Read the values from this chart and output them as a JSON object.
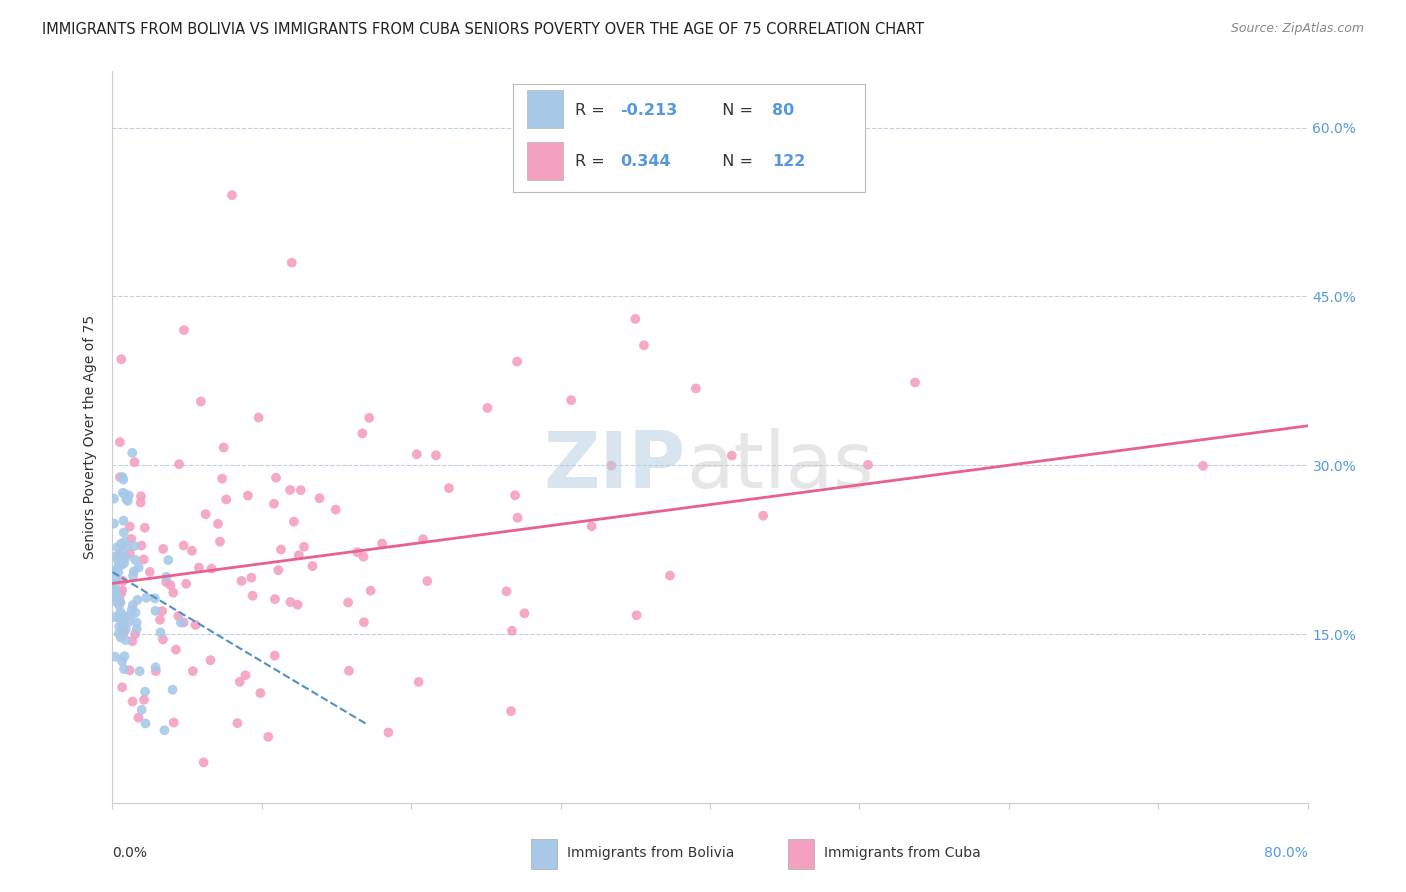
{
  "title": "IMMIGRANTS FROM BOLIVIA VS IMMIGRANTS FROM CUBA SENIORS POVERTY OVER THE AGE OF 75 CORRELATION CHART",
  "source": "Source: ZipAtlas.com",
  "ylabel": "Seniors Poverty Over the Age of 75",
  "ytick_labels": [
    "15.0%",
    "30.0%",
    "45.0%",
    "60.0%"
  ],
  "ytick_values": [
    0.15,
    0.3,
    0.45,
    0.6
  ],
  "xlim": [
    0.0,
    0.8
  ],
  "ylim": [
    0.0,
    0.65
  ],
  "bolivia_R": -0.213,
  "bolivia_N": 80,
  "cuba_R": 0.344,
  "cuba_N": 122,
  "bolivia_color": "#a8c8e8",
  "cuba_color": "#f4a0c0",
  "bolivia_line_color": "#5090c8",
  "cuba_line_color": "#e86090",
  "title_fontsize": 11,
  "axis_label_fontsize": 10,
  "tick_fontsize": 10,
  "bolivia_trend_x": [
    0.0,
    0.17
  ],
  "bolivia_trend_y": [
    0.205,
    0.07
  ],
  "cuba_trend_x": [
    0.0,
    0.8
  ],
  "cuba_trend_y": [
    0.195,
    0.335
  ]
}
